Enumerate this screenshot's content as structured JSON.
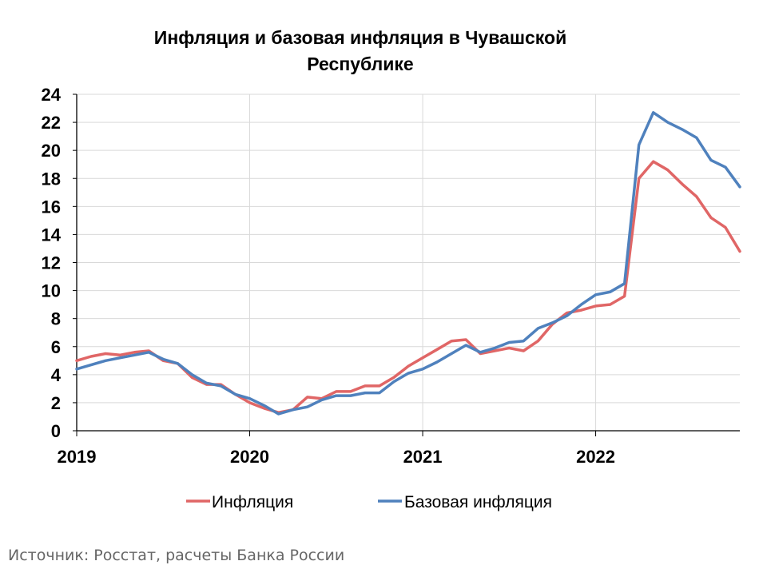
{
  "chart_data": {
    "type": "line",
    "title_line1": "Инфляция и базовая инфляция в Чувашской",
    "title_line2": "Республике",
    "xlabel": "",
    "ylabel": "",
    "ylim": [
      0,
      24
    ],
    "yticks": [
      "0",
      "2",
      "4",
      "6",
      "8",
      "10",
      "12",
      "14",
      "16",
      "18",
      "20",
      "22",
      "24"
    ],
    "xticks": [
      {
        "label": "2019",
        "x": 0
      },
      {
        "label": "2020",
        "x": 12
      },
      {
        "label": "2021",
        "x": 24
      },
      {
        "label": "2022",
        "x": 36
      }
    ],
    "x_range": [
      0,
      46
    ],
    "grid": true,
    "legend_position": "bottom",
    "series": [
      {
        "name": "Инфляция",
        "color": "#e06666",
        "values": [
          5.0,
          5.3,
          5.5,
          5.4,
          5.6,
          5.7,
          5.0,
          4.8,
          3.8,
          3.3,
          3.3,
          2.6,
          2.0,
          1.6,
          1.3,
          1.5,
          2.4,
          2.3,
          2.8,
          2.8,
          3.2,
          3.2,
          3.8,
          4.6,
          5.2,
          5.8,
          6.4,
          6.5,
          5.5,
          5.7,
          5.9,
          5.7,
          6.4,
          7.6,
          8.4,
          8.6,
          8.9,
          9.0,
          9.6,
          18.0,
          19.2,
          18.6,
          17.6,
          16.7,
          15.2,
          14.5,
          12.8
        ]
      },
      {
        "name": "Базовая инфляция",
        "color": "#4f81bd",
        "values": [
          4.4,
          4.7,
          5.0,
          5.2,
          5.4,
          5.6,
          5.1,
          4.8,
          4.0,
          3.4,
          3.2,
          2.6,
          2.3,
          1.8,
          1.2,
          1.5,
          1.7,
          2.2,
          2.5,
          2.5,
          2.7,
          2.7,
          3.5,
          4.1,
          4.4,
          4.9,
          5.5,
          6.1,
          5.6,
          5.9,
          6.3,
          6.4,
          7.3,
          7.7,
          8.2,
          9.0,
          9.7,
          9.9,
          10.5,
          20.4,
          22.7,
          22.0,
          21.5,
          20.9,
          19.3,
          18.8,
          17.4
        ]
      }
    ]
  },
  "legend": {
    "inflation_label": "Инфляция",
    "core_label": "Базовая инфляция"
  },
  "footer": {
    "source": "Источник: Росстат, расчеты Банка России"
  }
}
